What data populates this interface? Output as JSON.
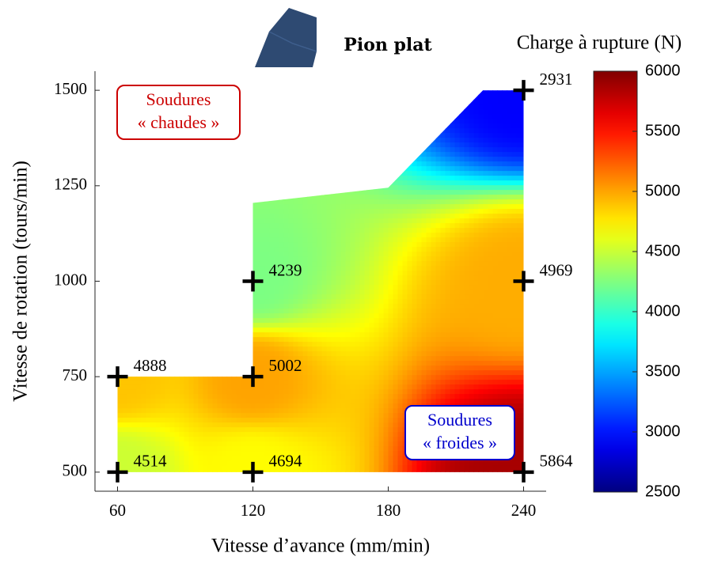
{
  "chart_data": {
    "type": "scatter",
    "title": "Pion plat",
    "x_label": "Vitesse d’avance (mm/min)",
    "y_label": "Vitesse de rotation (tours/min)",
    "x": [
      60,
      60,
      120,
      120,
      120,
      240,
      240,
      240
    ],
    "y": [
      500,
      750,
      500,
      750,
      1000,
      500,
      1000,
      1500
    ],
    "values": [
      4514,
      4888,
      4694,
      5002,
      4239,
      5864,
      4969,
      2931
    ],
    "marker_color": "#000000",
    "xlim": [
      50,
      250
    ],
    "xticks": [
      60,
      120,
      180,
      240
    ],
    "ylim": [
      450,
      1550
    ],
    "yticks": [
      500,
      750,
      1000,
      1250,
      1500
    ],
    "region": {
      "x": [
        60,
        240,
        240,
        222,
        180,
        120,
        120,
        60
      ],
      "y": [
        500,
        500,
        1500,
        1500,
        1245,
        1205,
        750,
        750
      ]
    },
    "colorbar": {
      "label": "Charge à rupture (N)",
      "colormap": "jet",
      "clim": [
        2500,
        6000
      ],
      "ticks": [
        2500,
        3000,
        3500,
        4000,
        4500,
        5000,
        5500,
        6000
      ]
    },
    "annotations": [
      {
        "lines": [
          "Soudures",
          "« chaudes »"
        ],
        "color": "#cc0000"
      },
      {
        "lines": [
          "Soudures",
          "« froides »"
        ],
        "color": "#0000cc"
      }
    ]
  }
}
